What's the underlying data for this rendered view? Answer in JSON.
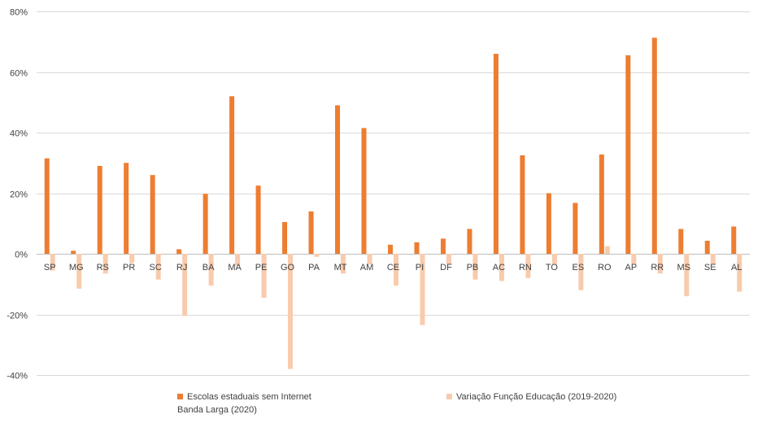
{
  "chart_data": {
    "type": "bar",
    "categories": [
      "SP",
      "MG",
      "RS",
      "PR",
      "SC",
      "RJ",
      "BA",
      "MA",
      "PE",
      "GO",
      "PA",
      "MT",
      "AM",
      "CE",
      "PI",
      "DF",
      "PB",
      "AC",
      "RN",
      "TO",
      "ES",
      "RO",
      "AP",
      "RR",
      "MS",
      "SE",
      "AL"
    ],
    "series": [
      {
        "name": "Escolas estaduais sem Internet Banda Larga (2020)",
        "color": "#ED7D31",
        "values": [
          31.5,
          1.0,
          29.0,
          30.0,
          26.0,
          1.5,
          19.8,
          52.0,
          22.5,
          10.5,
          14.0,
          49.0,
          41.5,
          3.0,
          3.8,
          5.0,
          8.2,
          66.0,
          32.5,
          20.0,
          16.8,
          32.8,
          65.5,
          71.3,
          8.2,
          4.3,
          9.0
        ]
      },
      {
        "name": "Variação Função Educação (2019-2020)",
        "color": "#F8CBAD",
        "values": [
          -5.5,
          -11.5,
          -6.5,
          -3.0,
          -8.5,
          -20.5,
          -10.5,
          -4.0,
          -14.5,
          -38.0,
          -1.0,
          -6.5,
          -3.5,
          -10.5,
          -23.5,
          -3.5,
          -8.5,
          -9.0,
          -8.0,
          -3.5,
          -12.0,
          2.5,
          -3.5,
          -6.5,
          -14.0,
          -3.5,
          -12.5
        ]
      }
    ],
    "ylim": [
      -40,
      80
    ],
    "yticks": [
      -40,
      -20,
      0,
      20,
      40,
      60,
      80
    ],
    "ytick_labels": [
      "-40%",
      "-20%",
      "0%",
      "20%",
      "40%",
      "60%",
      "80%"
    ],
    "grid": true,
    "legend_position": "bottom",
    "gridline_color": "#D9D9D9",
    "axis_color": "#BFBFBF"
  }
}
